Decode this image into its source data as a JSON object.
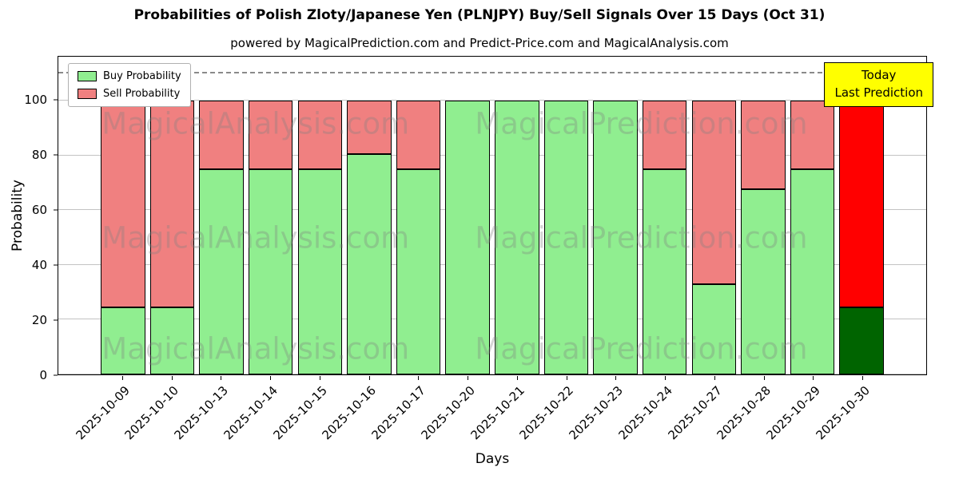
{
  "figure": {
    "title": "Probabilities of Polish Zloty/Japanese Yen (PLNJPY) Buy/Sell Signals Over 15 Days (Oct 31)",
    "subtitle": "powered by MagicalPrediction.com and Predict-Price.com and MagicalAnalysis.com"
  },
  "legend": {
    "buy_label": "Buy Probability",
    "sell_label": "Sell Probability"
  },
  "annotation_box": {
    "line1": "Today",
    "line2": "Last Prediction",
    "bg_color": "#ffff00"
  },
  "watermarks": {
    "left_text": "MagicalAnalysis.com",
    "right_text": "MagicalPrediction.com"
  },
  "chart_data": {
    "type": "bar",
    "stacked": true,
    "title": "Probabilities of Polish Zloty/Japanese Yen (PLNJPY) Buy/Sell Signals Over 15 Days (Oct 31)",
    "xlabel": "Days",
    "ylabel": "Probability",
    "ylim": [
      0,
      116
    ],
    "yticks": [
      0,
      20,
      40,
      60,
      80,
      100
    ],
    "grid": true,
    "dashed_line_y": 110,
    "legend_position": "upper left",
    "bar_edge_color": "#000000",
    "categories": [
      "2025-10-09",
      "2025-10-10",
      "2025-10-13",
      "2025-10-14",
      "2025-10-15",
      "2025-10-16",
      "2025-10-17",
      "2025-10-20",
      "2025-10-21",
      "2025-10-22",
      "2025-10-23",
      "2025-10-24",
      "2025-10-27",
      "2025-10-28",
      "2025-10-29",
      "2025-10-30"
    ],
    "series": [
      {
        "name": "Buy Probability",
        "color": "#90EE90",
        "today_color": "#006400",
        "values": [
          24.5,
          24.5,
          75,
          75,
          75,
          80.5,
          75,
          100,
          100,
          100,
          100,
          75,
          33,
          67.5,
          75,
          24.5
        ]
      },
      {
        "name": "Sell Probability",
        "color": "#F08080",
        "today_color": "#FF0000",
        "values": [
          75.5,
          75.5,
          25,
          25,
          25,
          19.5,
          25,
          0,
          0,
          0,
          0,
          25,
          67,
          32.5,
          25,
          75.5
        ]
      }
    ],
    "today_index": 15
  }
}
